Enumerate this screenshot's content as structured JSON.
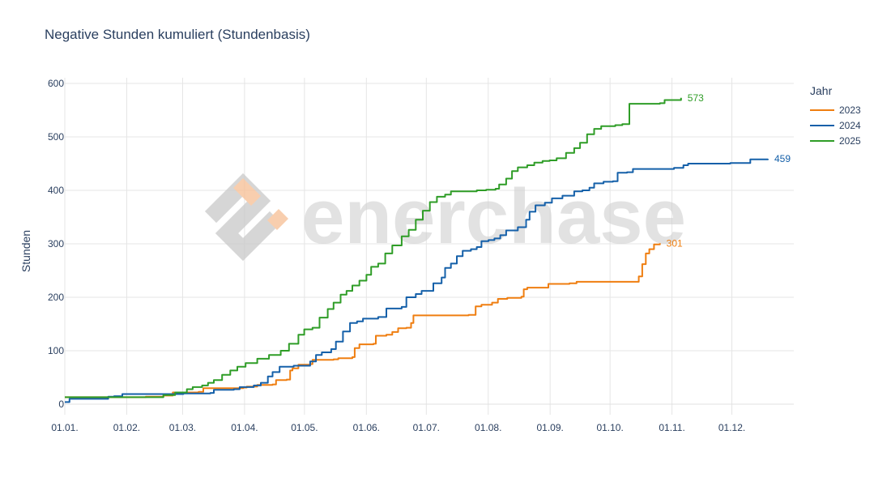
{
  "chart_data": {
    "type": "line",
    "title": "Negative Stunden kumuliert (Stundenbasis)",
    "xlabel": "",
    "ylabel": "Stunden",
    "x_tick_labels": [
      "01.01.",
      "01.02.",
      "01.03.",
      "01.04.",
      "01.05.",
      "01.06.",
      "01.07.",
      "01.08.",
      "01.09.",
      "01.10.",
      "01.11.",
      "01.12."
    ],
    "y_ticks": [
      0,
      100,
      200,
      300,
      400,
      500,
      600
    ],
    "ylim": [
      -20,
      610
    ],
    "xlim_day_of_year": [
      1,
      366
    ],
    "grid": true,
    "legend_title": "Jahr",
    "legend_position": "right",
    "series": [
      {
        "name": "2023",
        "color": "#ef7e10",
        "end_label": "301",
        "points": [
          [
            1,
            13
          ],
          [
            60,
            13
          ],
          [
            70,
            14
          ],
          [
            85,
            16
          ],
          [
            93,
            22
          ],
          [
            115,
            23
          ],
          [
            119,
            30
          ],
          [
            153,
            31
          ],
          [
            156,
            33
          ],
          [
            165,
            36
          ],
          [
            178,
            37
          ],
          [
            181,
            45
          ],
          [
            190,
            46
          ],
          [
            193,
            63
          ],
          [
            195,
            67
          ],
          [
            200,
            74
          ],
          [
            210,
            75
          ],
          [
            212,
            83
          ],
          [
            230,
            84
          ],
          [
            234,
            86
          ],
          [
            246,
            88
          ],
          [
            248,
            105
          ],
          [
            252,
            112
          ],
          [
            264,
            113
          ],
          [
            266,
            128
          ],
          [
            275,
            130
          ],
          [
            280,
            135
          ],
          [
            285,
            142
          ],
          [
            292,
            143
          ],
          [
            296,
            152
          ],
          [
            298,
            166
          ],
          [
            345,
            167
          ],
          [
            351,
            183
          ],
          [
            356,
            186
          ],
          [
            365,
            190
          ],
          [
            370,
            197
          ],
          [
            378,
            199
          ],
          [
            390,
            201
          ],
          [
            392,
            215
          ],
          [
            395,
            218
          ],
          [
            409,
            218
          ],
          [
            413,
            225
          ],
          [
            431,
            226
          ],
          [
            437,
            229
          ],
          [
            486,
            229
          ],
          [
            490,
            239
          ],
          [
            493,
            262
          ],
          [
            496,
            282
          ],
          [
            499,
            290
          ],
          [
            503,
            299
          ],
          [
            508,
            301
          ]
        ]
      },
      {
        "name": "2024",
        "color": "#1560a9",
        "end_label": "459",
        "points": [
          [
            1,
            4
          ],
          [
            5,
            10
          ],
          [
            33,
            10
          ],
          [
            38,
            14
          ],
          [
            43,
            15
          ],
          [
            50,
            19
          ],
          [
            99,
            19
          ],
          [
            102,
            20
          ],
          [
            125,
            21
          ],
          [
            128,
            27
          ],
          [
            145,
            28
          ],
          [
            150,
            32
          ],
          [
            162,
            35
          ],
          [
            168,
            40
          ],
          [
            174,
            52
          ],
          [
            178,
            60
          ],
          [
            184,
            70
          ],
          [
            196,
            72
          ],
          [
            210,
            80
          ],
          [
            215,
            92
          ],
          [
            220,
            97
          ],
          [
            228,
            103
          ],
          [
            232,
            117
          ],
          [
            238,
            136
          ],
          [
            244,
            152
          ],
          [
            250,
            155
          ],
          [
            255,
            160
          ],
          [
            268,
            163
          ],
          [
            275,
            179
          ],
          [
            288,
            182
          ],
          [
            292,
            200
          ],
          [
            300,
            206
          ],
          [
            305,
            212
          ],
          [
            315,
            226
          ],
          [
            322,
            237
          ],
          [
            325,
            255
          ],
          [
            330,
            263
          ],
          [
            335,
            277
          ],
          [
            340,
            287
          ],
          [
            347,
            290
          ],
          [
            352,
            294
          ],
          [
            356,
            305
          ],
          [
            362,
            307
          ],
          [
            367,
            310
          ],
          [
            372,
            316
          ],
          [
            377,
            325
          ],
          [
            387,
            331
          ],
          [
            394,
            345
          ],
          [
            397,
            360
          ],
          [
            402,
            372
          ],
          [
            410,
            377
          ],
          [
            416,
            385
          ],
          [
            425,
            390
          ],
          [
            435,
            398
          ],
          [
            442,
            400
          ],
          [
            448,
            405
          ],
          [
            452,
            413
          ],
          [
            460,
            416
          ],
          [
            468,
            417
          ],
          [
            472,
            433
          ],
          [
            480,
            434
          ],
          [
            485,
            440
          ],
          [
            500,
            440
          ],
          [
            510,
            440
          ],
          [
            520,
            442
          ],
          [
            528,
            447
          ],
          [
            532,
            450
          ],
          [
            568,
            451
          ],
          [
            581,
            451
          ],
          [
            585,
            458
          ],
          [
            600,
            459
          ]
        ]
      },
      {
        "name": "2025",
        "color": "#2f9d27",
        "end_label": "573",
        "points": [
          [
            1,
            13
          ],
          [
            75,
            13
          ],
          [
            85,
            17
          ],
          [
            95,
            22
          ],
          [
            105,
            28
          ],
          [
            110,
            32
          ],
          [
            118,
            35
          ],
          [
            123,
            40
          ],
          [
            128,
            45
          ],
          [
            135,
            55
          ],
          [
            142,
            63
          ],
          [
            148,
            70
          ],
          [
            155,
            77
          ],
          [
            165,
            85
          ],
          [
            175,
            92
          ],
          [
            185,
            100
          ],
          [
            192,
            113
          ],
          [
            200,
            130
          ],
          [
            205,
            140
          ],
          [
            212,
            143
          ],
          [
            218,
            162
          ],
          [
            225,
            178
          ],
          [
            230,
            190
          ],
          [
            236,
            205
          ],
          [
            241,
            212
          ],
          [
            246,
            222
          ],
          [
            252,
            231
          ],
          [
            258,
            242
          ],
          [
            262,
            257
          ],
          [
            268,
            263
          ],
          [
            274,
            282
          ],
          [
            280,
            297
          ],
          [
            288,
            314
          ],
          [
            294,
            326
          ],
          [
            300,
            345
          ],
          [
            306,
            362
          ],
          [
            312,
            378
          ],
          [
            318,
            388
          ],
          [
            325,
            392
          ],
          [
            330,
            398
          ],
          [
            349,
            398
          ],
          [
            352,
            400
          ],
          [
            360,
            401
          ],
          [
            368,
            403
          ],
          [
            371,
            411
          ],
          [
            377,
            422
          ],
          [
            382,
            436
          ],
          [
            387,
            443
          ],
          [
            395,
            447
          ],
          [
            401,
            452
          ],
          [
            408,
            455
          ],
          [
            414,
            456
          ],
          [
            420,
            460
          ],
          [
            428,
            470
          ],
          [
            435,
            479
          ],
          [
            440,
            489
          ],
          [
            446,
            505
          ],
          [
            452,
            515
          ],
          [
            458,
            520
          ],
          [
            470,
            522
          ],
          [
            476,
            524
          ],
          [
            482,
            562
          ],
          [
            508,
            563
          ],
          [
            512,
            569
          ],
          [
            526,
            573
          ]
        ]
      }
    ]
  },
  "watermark": "enerchase"
}
